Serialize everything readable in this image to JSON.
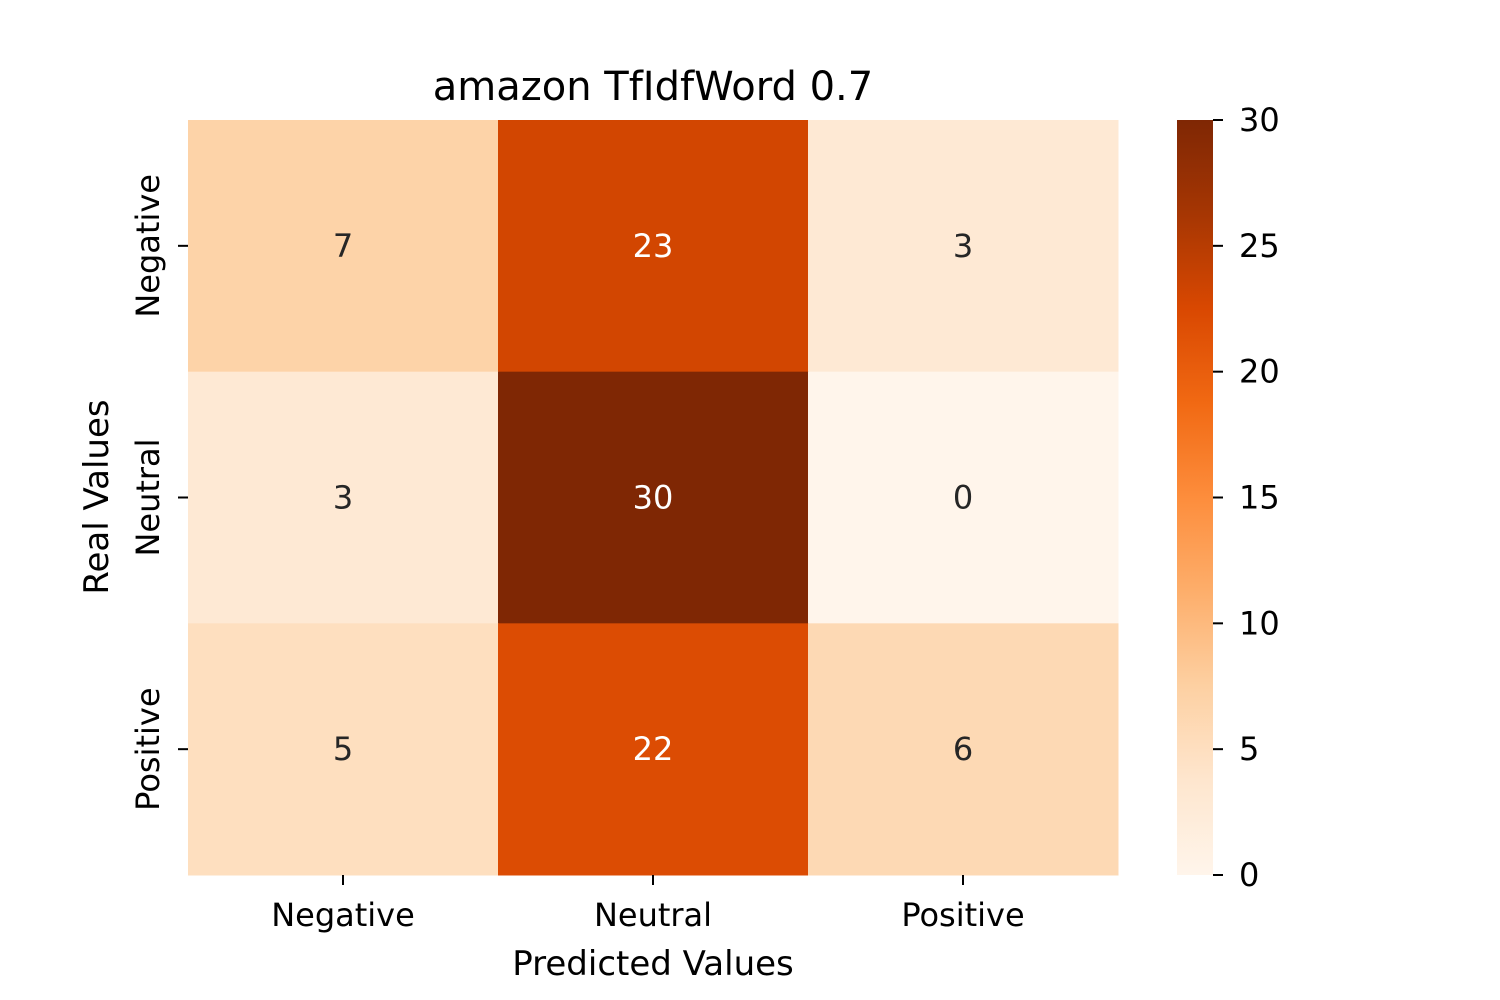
{
  "chart_data": {
    "type": "heatmap",
    "title": "amazon TfIdfWord 0.7",
    "xlabel": "Predicted Values",
    "ylabel": "Real Values",
    "x_categories": [
      "Negative",
      "Neutral",
      "Positive"
    ],
    "y_categories": [
      "Negative",
      "Neutral",
      "Positive"
    ],
    "values": [
      [
        7,
        23,
        3
      ],
      [
        3,
        30,
        0
      ],
      [
        5,
        22,
        6
      ]
    ],
    "colorbar": {
      "range": [
        0,
        30
      ],
      "ticks": [
        0,
        5,
        10,
        15,
        20,
        25,
        30
      ],
      "colormap": "Oranges",
      "colors": [
        "#fff5eb",
        "#fee6ce",
        "#fdd0a2",
        "#fdae6b",
        "#fd8d3c",
        "#f16913",
        "#d94801",
        "#a63603",
        "#7f2704"
      ]
    },
    "grid": false
  }
}
